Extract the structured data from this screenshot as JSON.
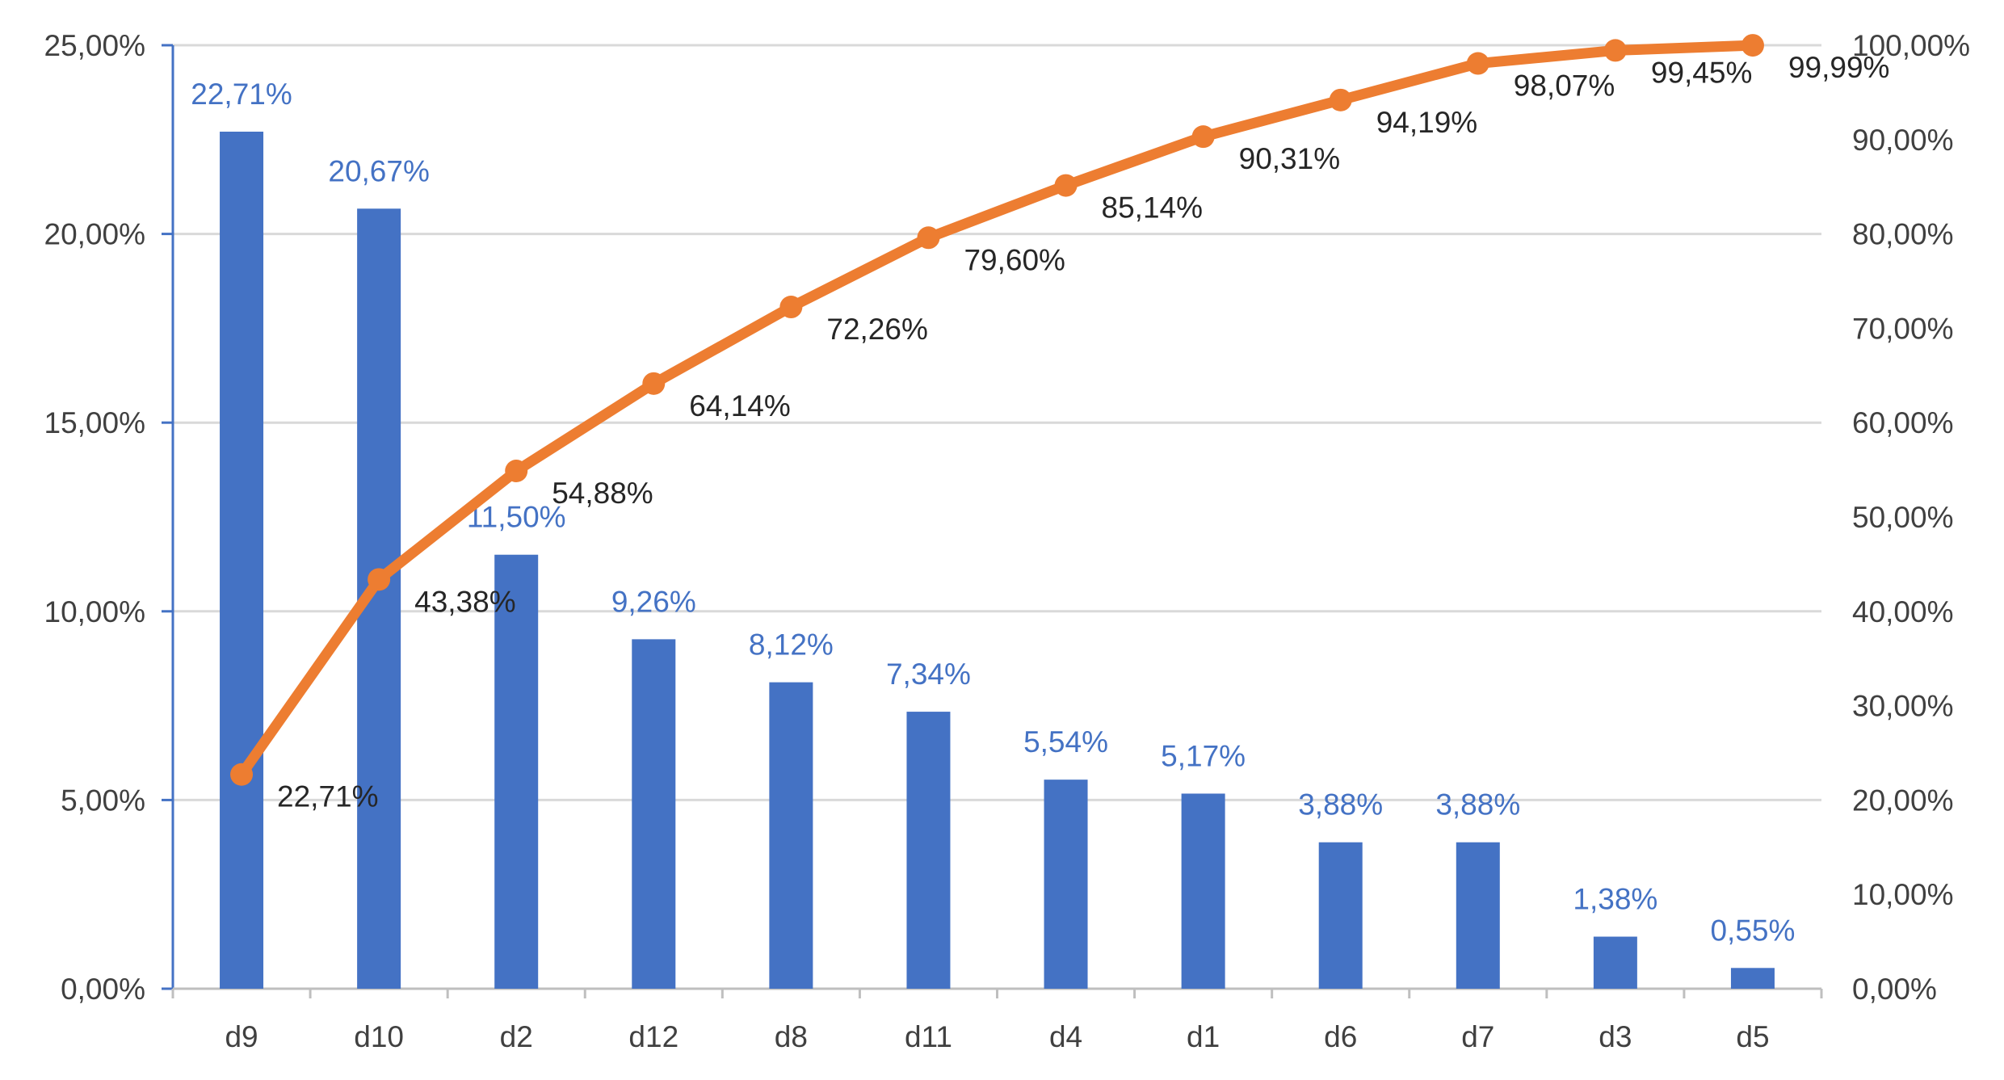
{
  "chart_data": {
    "type": "bar",
    "title": "",
    "xlabel": "",
    "ylabel": "",
    "categories": [
      "d9",
      "d10",
      "d2",
      "d12",
      "d8",
      "d11",
      "d4",
      "d1",
      "d6",
      "d7",
      "d3",
      "d5"
    ],
    "series": [
      {
        "type": "bar",
        "axis": "left",
        "color": "#4472C4",
        "label_color": "#4472C4",
        "values": [
          22.71,
          20.67,
          11.5,
          9.26,
          8.12,
          7.34,
          5.54,
          5.17,
          3.88,
          3.88,
          1.38,
          0.55
        ],
        "labels": [
          "22,71%",
          "20,67%",
          "11,50%",
          "9,26%",
          "8,12%",
          "7,34%",
          "5,54%",
          "5,17%",
          "3,88%",
          "3,88%",
          "1,38%",
          "0,55%"
        ]
      },
      {
        "type": "line",
        "axis": "right",
        "color": "#ED7D31",
        "label_color": "#262626",
        "values": [
          22.71,
          43.38,
          54.88,
          64.14,
          72.26,
          79.6,
          85.14,
          90.31,
          94.19,
          98.07,
          99.45,
          99.99
        ],
        "labels": [
          "22,71%",
          "43,38%",
          "54,88%",
          "64,14%",
          "72,26%",
          "79,60%",
          "85,14%",
          "90,31%",
          "94,19%",
          "98,07%",
          "99,45%",
          "99,99%"
        ]
      }
    ],
    "y_left": {
      "range": [
        0,
        25
      ],
      "ticks": [
        "0,00%",
        "5,00%",
        "10,00%",
        "15,00%",
        "20,00%",
        "25,00%"
      ],
      "axis_color": "#4472C4"
    },
    "y_right": {
      "range": [
        0,
        100
      ],
      "ticks": [
        "0,00%",
        "10,00%",
        "20,00%",
        "30,00%",
        "40,00%",
        "50,00%",
        "60,00%",
        "70,00%",
        "80,00%",
        "90,00%",
        "100,00%"
      ]
    },
    "grid": true,
    "legend": "none"
  }
}
